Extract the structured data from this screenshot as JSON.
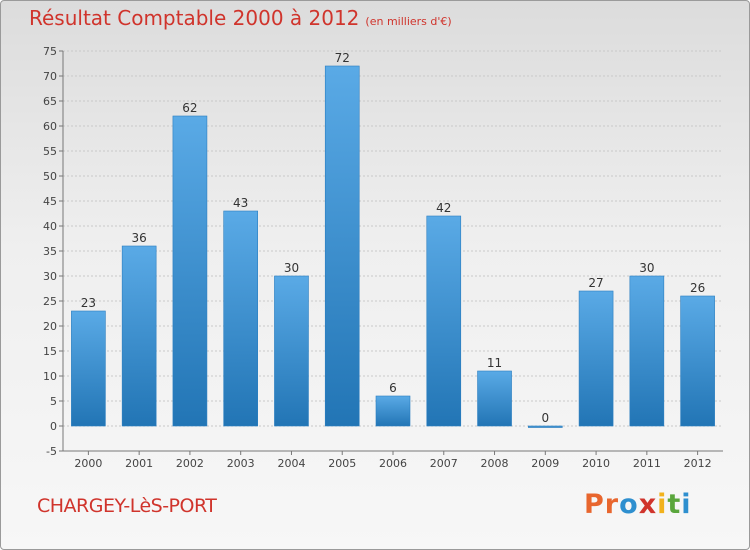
{
  "header": {
    "title": "Résultat Comptable 2000 à 2012",
    "subtitle": "(en milliers d'€)"
  },
  "footer": {
    "place": "CHARGEY-LèS-PORT",
    "brand": "Proxiti",
    "brand_colors": [
      "#e8662e",
      "#e8662e",
      "#2e8fcf",
      "#d0342c",
      "#f2b21c",
      "#5aa63c",
      "#2e8fcf"
    ]
  },
  "colors": {
    "bar_top": "#5aaae6",
    "bar_bottom": "#2275b5",
    "title": "#d0342c",
    "grid": "#c9c9c9"
  },
  "chart_data": {
    "type": "bar",
    "title": "Résultat Comptable 2000 à 2012",
    "subtitle": "(en milliers d'€)",
    "categories": [
      "2000",
      "2001",
      "2002",
      "2003",
      "2004",
      "2005",
      "2006",
      "2007",
      "2008",
      "2009",
      "2010",
      "2011",
      "2012"
    ],
    "values": [
      23,
      36,
      62,
      43,
      30,
      72,
      6,
      42,
      11,
      0,
      27,
      30,
      26
    ],
    "ylim": [
      -5,
      75
    ],
    "yticks": [
      -5,
      0,
      5,
      10,
      15,
      20,
      25,
      30,
      35,
      40,
      45,
      50,
      55,
      60,
      65,
      70,
      75
    ],
    "grid": true,
    "data_labels": true
  }
}
